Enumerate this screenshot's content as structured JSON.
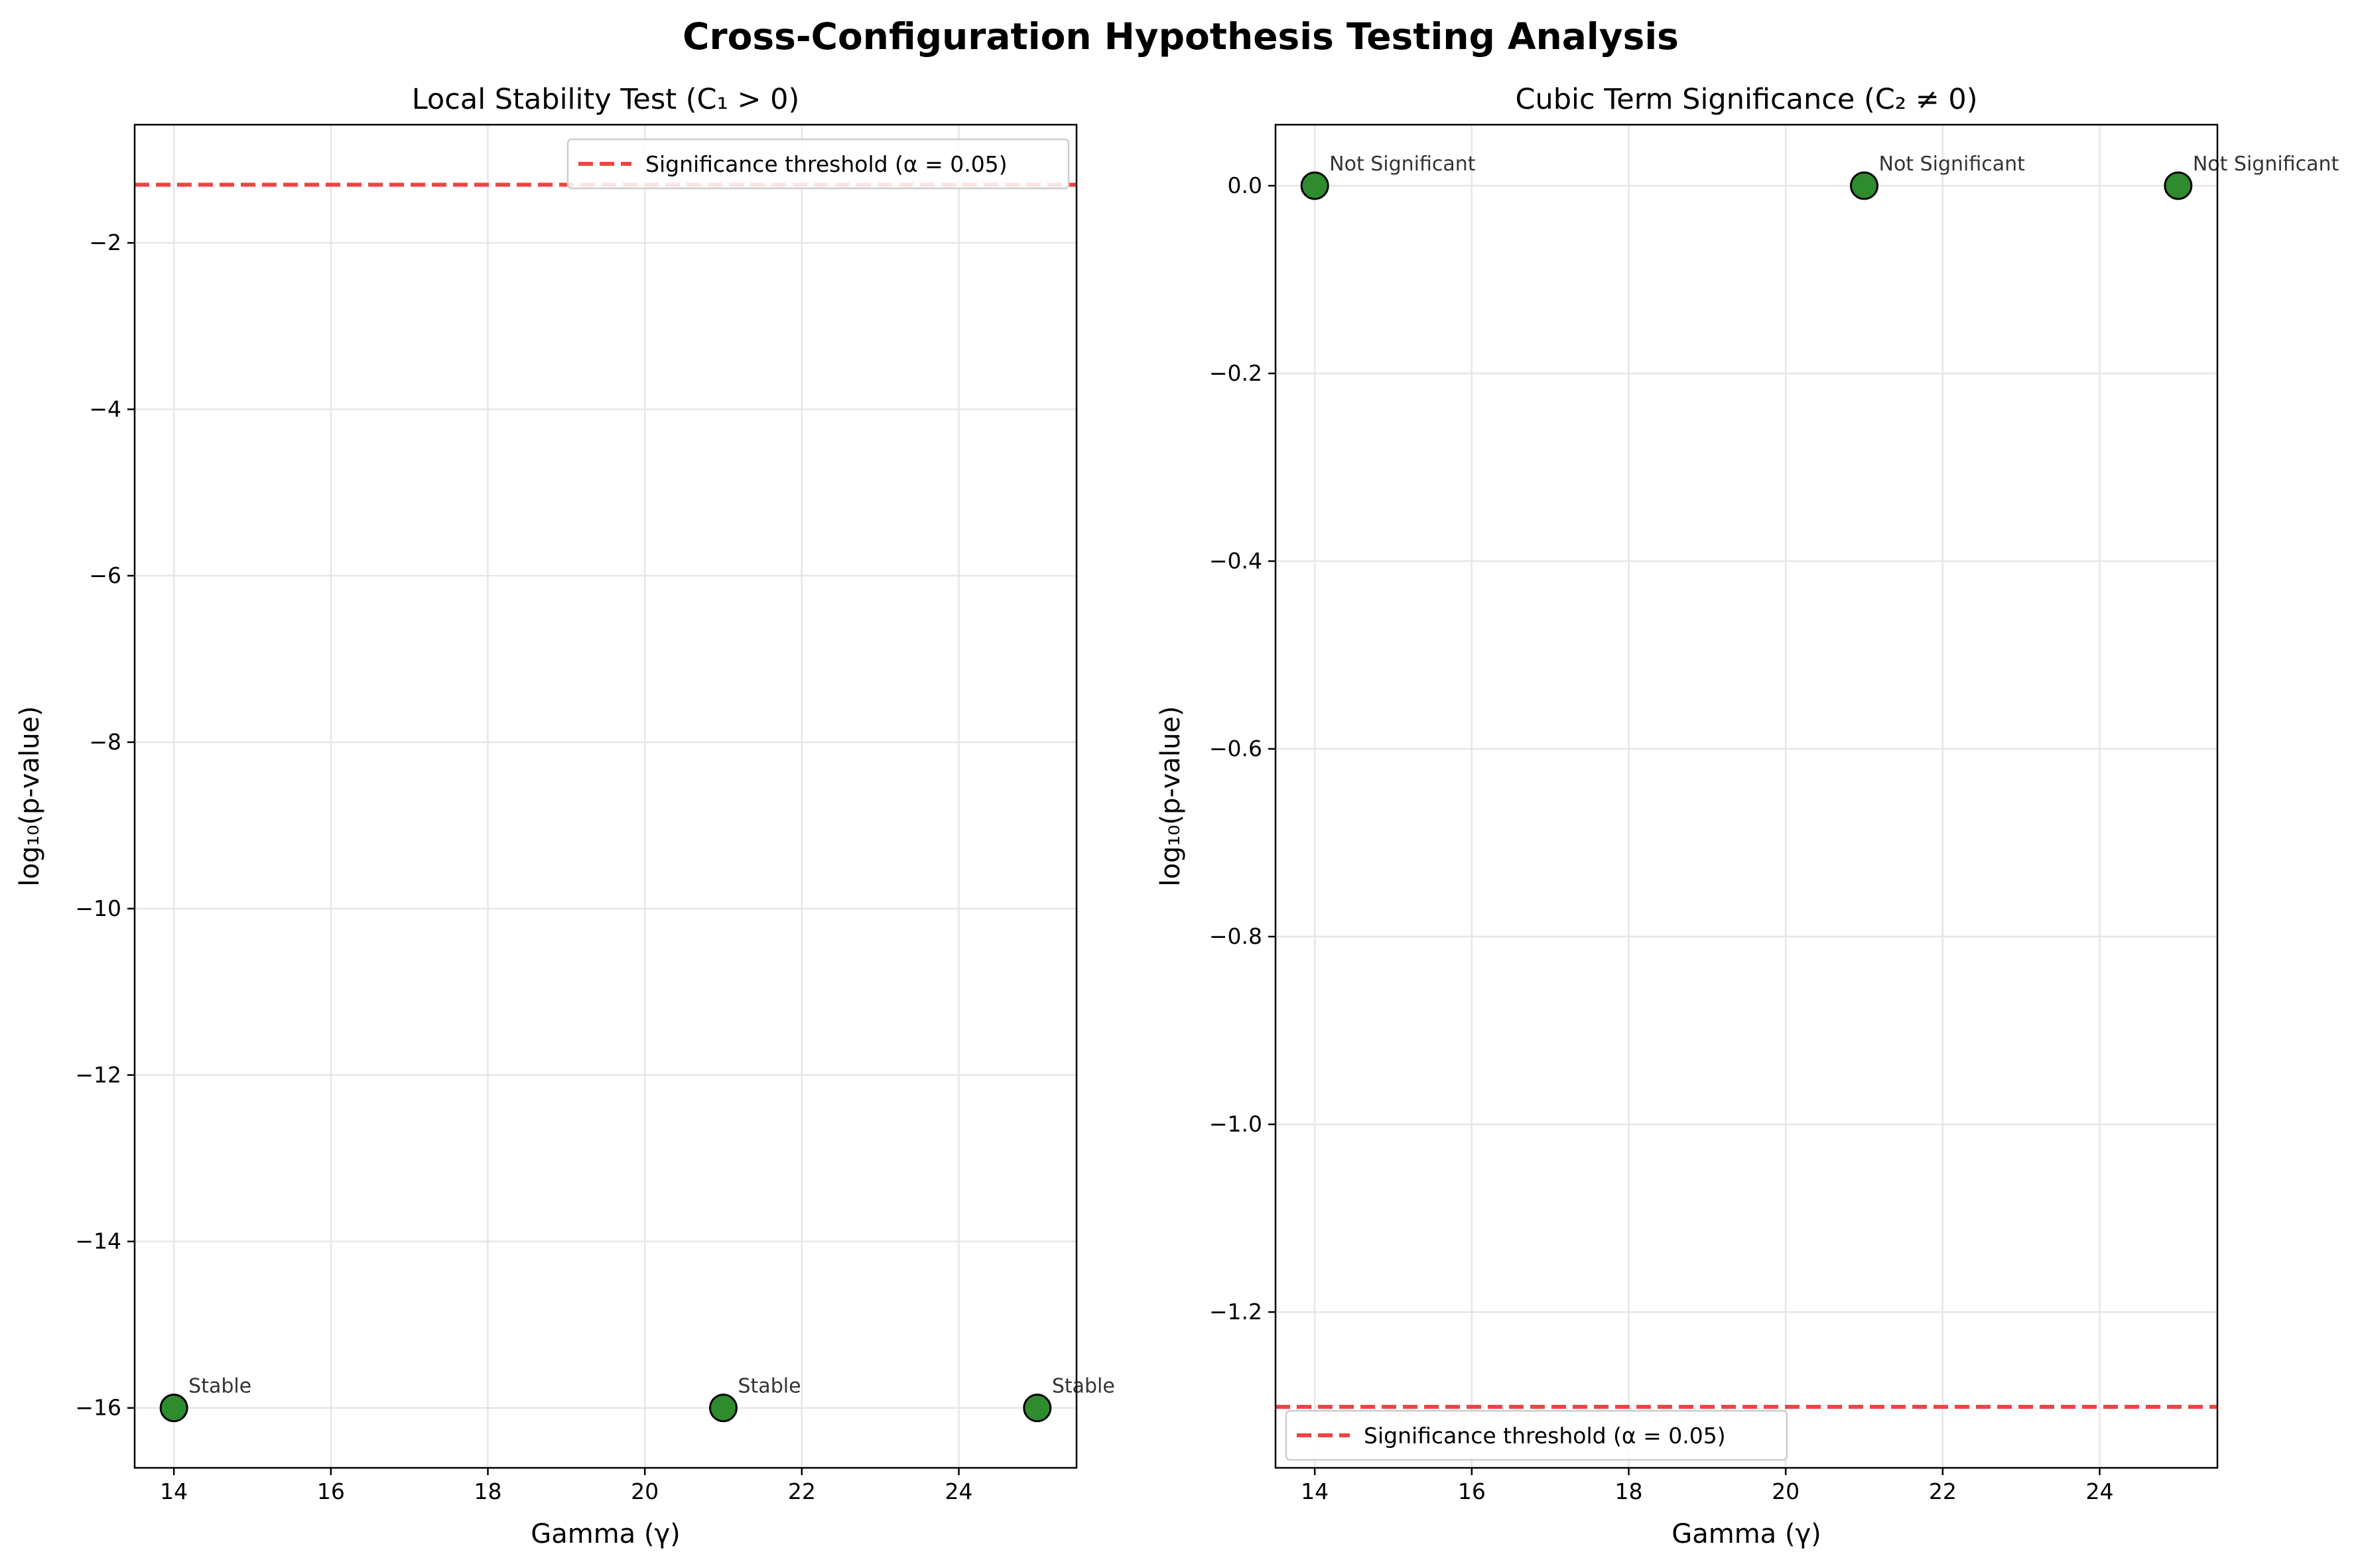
{
  "figure": {
    "title": "Cross-Configuration Hypothesis Testing Analysis"
  },
  "colors": {
    "marker_fill": "#2e8b2e",
    "marker_edge": "#000000",
    "threshold": "#ef4444",
    "grid": "#e6e6e6"
  },
  "chart_data": [
    {
      "type": "scatter",
      "title": "Local Stability Test (C₁ > 0)",
      "xlabel": "Gamma (γ)",
      "ylabel": "log₁₀(p-value)",
      "xlim": [
        13.5,
        25.5
      ],
      "ylim": [
        -16.72,
        -0.58
      ],
      "xticks": [
        14,
        16,
        18,
        20,
        22,
        24
      ],
      "yticks": [
        -2,
        -4,
        -6,
        -8,
        -10,
        -12,
        -14,
        -16
      ],
      "grid": true,
      "legend_position": "top-right",
      "x": [
        14,
        21,
        25
      ],
      "y": [
        -16,
        -16,
        -16
      ],
      "annotations": [
        "Stable",
        "Stable",
        "Stable"
      ],
      "threshold": {
        "label": "Significance threshold (α = 0.05)",
        "value": -1.301
      }
    },
    {
      "type": "scatter",
      "title": "Cubic Term Significance (C₂ ≠ 0)",
      "xlabel": "Gamma (γ)",
      "ylabel": "log₁₀(p-value)",
      "xlim": [
        13.5,
        25.5
      ],
      "ylim": [
        -1.366,
        0.065
      ],
      "xticks": [
        14,
        16,
        18,
        20,
        22,
        24
      ],
      "yticks": [
        0.0,
        -0.2,
        -0.4,
        -0.6,
        -0.8,
        -1.0,
        -1.2
      ],
      "grid": true,
      "legend_position": "bottom-left",
      "x": [
        14,
        21,
        25
      ],
      "y": [
        0,
        0,
        0
      ],
      "annotations": [
        "Not Significant",
        "Not Significant",
        "Not Significant"
      ],
      "threshold": {
        "label": "Significance threshold (α = 0.05)",
        "value": -1.301
      }
    }
  ]
}
